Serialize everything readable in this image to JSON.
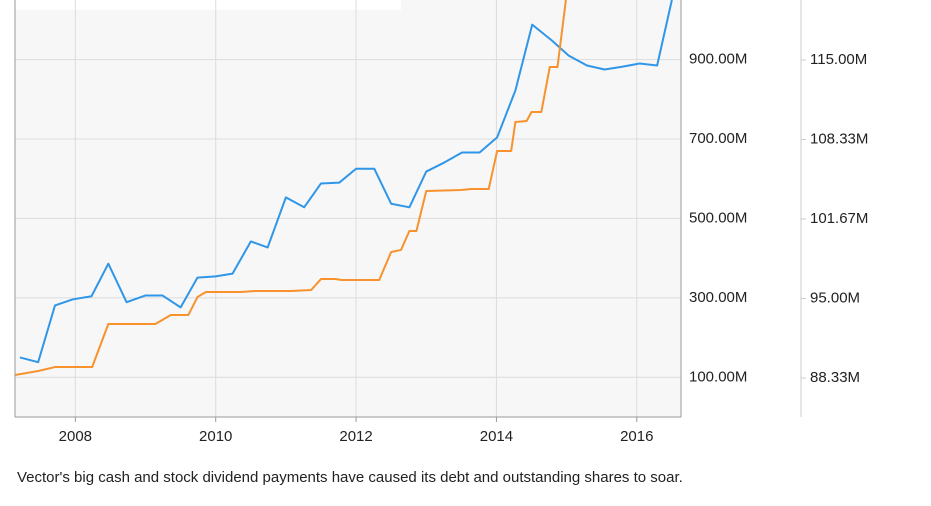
{
  "chart_data": {
    "type": "line",
    "caption": "Vector's big cash and stock dividend payments have caused its debt and outstanding shares to soar.",
    "xlim": [
      2007.14,
      2016.63
    ],
    "xticks": [
      2008,
      2010,
      2012,
      2014,
      2016
    ],
    "ylim": [
      0,
      1050
    ],
    "yticks": [
      {
        "value": 100,
        "label": "100.00M"
      },
      {
        "value": 300,
        "label": "300.00M"
      },
      {
        "value": 500,
        "label": "500.00M"
      },
      {
        "value": 700,
        "label": "700.00M"
      },
      {
        "value": 900,
        "label": "900.00M"
      }
    ],
    "y2lim": [
      85.06,
      120.03
    ],
    "y2ticks": [
      {
        "value": 88.33,
        "label": "88.33M"
      },
      {
        "value": 95,
        "label": "95.00M"
      },
      {
        "value": 101.67,
        "label": "101.67M"
      },
      {
        "value": 108.33,
        "label": "108.33M"
      },
      {
        "value": 115,
        "label": "115.00M"
      }
    ],
    "grid": true,
    "series": [
      {
        "color": "#2f96e8",
        "axis": "y",
        "x": [
          2007.21,
          2007.47,
          2007.71,
          2007.96,
          2008.23,
          2008.47,
          2008.73,
          2009.0,
          2009.24,
          2009.5,
          2009.74,
          2010.0,
          2010.24,
          2010.5,
          2010.74,
          2011.0,
          2011.26,
          2011.5,
          2011.76,
          2012.0,
          2012.26,
          2012.5,
          2012.76,
          2013.0,
          2013.26,
          2013.51,
          2013.76,
          2014.01,
          2014.27,
          2014.51,
          2014.79,
          2015.03,
          2015.29,
          2015.54,
          2015.79,
          2016.04,
          2016.29,
          2016.5
        ],
        "values": [
          150,
          138,
          281,
          296,
          304,
          386,
          289,
          306,
          306,
          276,
          351,
          354,
          361,
          442,
          427,
          553,
          528,
          588,
          590,
          625,
          625,
          537,
          528,
          618,
          641,
          666,
          666,
          704,
          822,
          988,
          948,
          910,
          885,
          875,
          882,
          890,
          885,
          1050
        ]
      },
      {
        "color": "#f7922e",
        "axis": "y2",
        "x": [
          2007.14,
          2007.47,
          2007.71,
          2008.24,
          2008.47,
          2009.14,
          2009.36,
          2009.61,
          2009.74,
          2009.86,
          2010.36,
          2010.57,
          2011.07,
          2011.36,
          2011.5,
          2011.71,
          2011.79,
          2012.33,
          2012.5,
          2012.64,
          2012.76,
          2012.86,
          2013.0,
          2013.5,
          2013.64,
          2013.89,
          2014.01,
          2014.21,
          2014.27,
          2014.43,
          2014.5,
          2014.64,
          2014.76,
          2014.87,
          2014.99
        ],
        "values": [
          88.58,
          88.92,
          89.25,
          89.25,
          92.86,
          92.86,
          93.61,
          93.61,
          95.12,
          95.54,
          95.54,
          95.63,
          95.63,
          95.71,
          96.63,
          96.63,
          96.55,
          96.55,
          98.9,
          99.07,
          100.66,
          100.66,
          104.01,
          104.1,
          104.18,
          104.18,
          107.37,
          107.37,
          109.8,
          109.88,
          110.64,
          110.64,
          114.41,
          114.41,
          120.03
        ]
      }
    ]
  }
}
